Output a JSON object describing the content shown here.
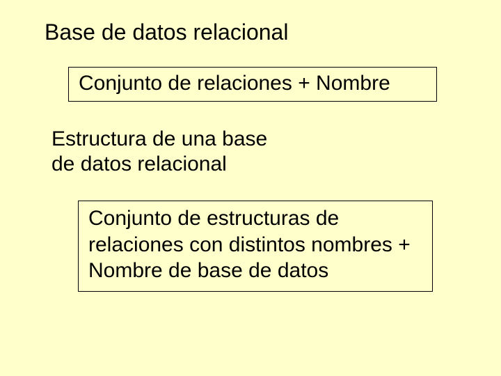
{
  "background_color": "#ffffcc",
  "text_color": "#000000",
  "border_color": "#000000",
  "font_family": "Arial",
  "heading1": {
    "text": "Base de datos relacional",
    "fontsize": 32
  },
  "box1": {
    "text": "Conjunto de relaciones + Nombre",
    "fontsize": 30
  },
  "heading2": {
    "text": "Estructura de una base de datos relacional",
    "fontsize": 30
  },
  "box2": {
    "text": "Conjunto de estructuras de relaciones con distintos nombres + Nombre de base de datos",
    "fontsize": 30
  }
}
